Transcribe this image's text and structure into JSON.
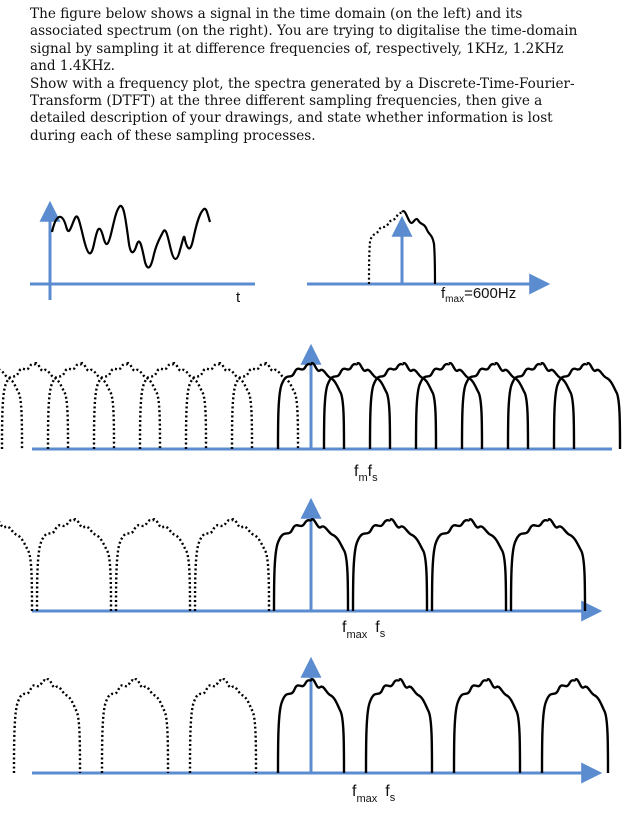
{
  "question": {
    "paragraph1": "The figure below shows a signal in the time domain (on the left) and its associated spectrum (on the right). You are trying to digitalise the time-domain signal by sampling it at difference frequencies of, respectively, 1KHz, 1.2KHz and 1.4KHz.",
    "paragraph2": "Show with a frequency plot, the spectra generated by a Discrete-Time-Fourier-Transform (DTFT) at the three different sampling frequencies, then give a detailed description of your drawings, and state whether information is lost during each of these sampling processes."
  },
  "figure": {
    "time_axis_label": "t",
    "fmax_label_main": "f",
    "fmax_label_sub": "max",
    "fmax_label_value": "=600Hz",
    "plot1": {
      "f1": "f",
      "f1_sub": "m",
      "f2": "f",
      "f2_sub": "s"
    },
    "plot2": {
      "f1": "f",
      "f1_sub": "max",
      "f2": "f",
      "f2_sub": "s"
    },
    "plot3": {
      "f1": "f",
      "f1_sub": "max",
      "f2": "f",
      "f2_sub": "s"
    },
    "colors": {
      "axis": "#5b8ccf",
      "trace": "#000000"
    }
  }
}
